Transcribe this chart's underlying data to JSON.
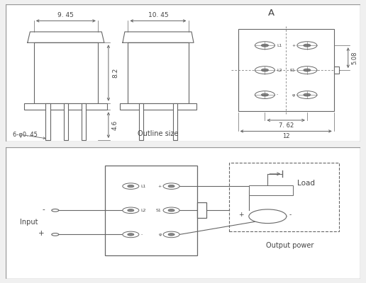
{
  "bg": "#f0f0f0",
  "panel_bg": "#ffffff",
  "border": "#999999",
  "lc": "#666666",
  "tc": "#444444",
  "dim_9_45": "9. 45",
  "dim_10_45": "10. 45",
  "dim_8_2": "8.2",
  "dim_4_6": "4.6",
  "dim_6phi": "6-φ0. 45",
  "dim_7_62": "7. 62",
  "dim_12": "12",
  "dim_5_08": "5.08",
  "label_A_top": "A",
  "label_A_sec": "A",
  "outline_label": "Outline size",
  "label_input": "Input",
  "label_load": "Load",
  "label_output": "Output power"
}
